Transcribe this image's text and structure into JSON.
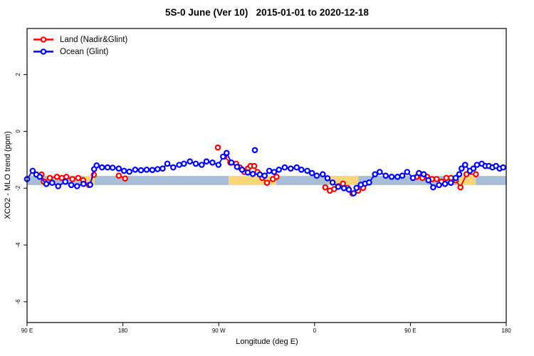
{
  "header": {
    "title": "5S-0 June (Ver 10)   2015-01-01 to 2020-12-18"
  },
  "chart_data": {
    "type": "line",
    "title": "5S-0 June (Ver 10)   2015-01-01 to 2020-12-18",
    "xlabel": "Longitude (deg E)",
    "ylabel": "XCO2 - MLO trend (ppm)",
    "xlim": [
      90,
      540
    ],
    "ylim": [
      -6.73,
      3.62
    ],
    "grid": false,
    "legend_position": "top-left",
    "marker": "open-circle",
    "xticks": [
      {
        "value": 90,
        "label": "90 E"
      },
      {
        "value": 180,
        "label": "180"
      },
      {
        "value": 270,
        "label": "90 W"
      },
      {
        "value": 360,
        "label": "0"
      },
      {
        "value": 450,
        "label": "90 E"
      },
      {
        "value": 540,
        "label": "180"
      }
    ],
    "yticks": [
      {
        "value": 2,
        "label": "2"
      },
      {
        "value": 0,
        "label": "0"
      },
      {
        "value": -2,
        "label": "-2"
      },
      {
        "value": -4,
        "label": "-4"
      },
      {
        "value": -6,
        "label": "-6"
      }
    ],
    "band": {
      "y": [
        -1.89,
        -1.57
      ],
      "colors": {
        "ocean": "#A8BED8",
        "land": "#FAD678"
      },
      "segments": [
        {
          "from": 90,
          "to": 142.8,
          "type": "ocean"
        },
        {
          "from": 142.8,
          "to": 153.5,
          "type": "land"
        },
        {
          "from": 153.5,
          "to": 279.3,
          "type": "ocean"
        },
        {
          "from": 279.3,
          "to": 324.1,
          "type": "land"
        },
        {
          "from": 324.1,
          "to": 373.6,
          "type": "ocean"
        },
        {
          "from": 373.6,
          "to": 401.0,
          "type": "land"
        },
        {
          "from": 401.0,
          "to": 496.0,
          "type": "ocean"
        },
        {
          "from": 496.0,
          "to": 511.4,
          "type": "land"
        },
        {
          "from": 511.4,
          "to": 540.0,
          "type": "ocean"
        }
      ]
    },
    "series": [
      {
        "name": "Land (Nadir&Glint)",
        "color": "#FF0000",
        "segments": [
          [
            [
              103.6,
              -1.52
            ],
            [
              105.8,
              -1.77
            ],
            [
              111.4,
              -1.64
            ],
            [
              118.1,
              -1.6
            ],
            [
              122.6,
              -1.64
            ],
            [
              127.0,
              -1.6
            ],
            [
              132.6,
              -1.68
            ],
            [
              138.1,
              -1.64
            ],
            [
              142.6,
              -1.72
            ],
            [
              148.2,
              -1.89
            ],
            [
              152.7,
              -1.53
            ]
          ],
          [
            [
              176.1,
              -1.56
            ],
            [
              182.1,
              -1.66
            ]
          ],
          [
            [
              275.2,
              -0.89
            ],
            [
              280.8,
              -1.1
            ],
            [
              286.4,
              -1.14
            ],
            [
              289.7,
              -1.27
            ],
            [
              294.1,
              -1.43
            ],
            [
              297.5,
              -1.31
            ],
            [
              299.9,
              -1.22
            ],
            [
              303.3,
              -1.22
            ],
            [
              306.4,
              -1.43
            ],
            [
              310.9,
              -1.64
            ],
            [
              315.3,
              -1.81
            ],
            [
              320.9,
              -1.68
            ],
            [
              324.3,
              -1.6
            ]
          ],
          [
            [
              370.0,
              -1.97
            ],
            [
              374.4,
              -2.09
            ],
            [
              378.4,
              -2.03
            ],
            [
              382.2,
              -1.93
            ],
            [
              386.7,
              -1.84
            ],
            [
              391.1,
              -1.99
            ],
            [
              395.6,
              -2.19
            ],
            [
              400.9,
              -2.09
            ],
            [
              405.6,
              -1.99
            ]
          ],
          [
            [
              455.8,
              -1.6
            ],
            [
              461.3,
              -1.64
            ],
            [
              465.8,
              -1.6
            ],
            [
              470.3,
              -1.68
            ],
            [
              474.7,
              -1.68
            ],
            [
              479.2,
              -1.77
            ],
            [
              483.7,
              -1.64
            ],
            [
              488.1,
              -1.64
            ],
            [
              492.6,
              -1.72
            ],
            [
              497.0,
              -1.97
            ],
            [
              502.6,
              -1.51
            ],
            [
              511.5,
              -1.51
            ]
          ]
        ],
        "outliers": [
          [
            269.2,
            -0.57
          ]
        ]
      },
      {
        "name": "Ocean (Glint)",
        "color": "#0000FF",
        "segments": [
          [
            [
              90.0,
              -1.68
            ],
            [
              95.3,
              -1.39
            ],
            [
              98.7,
              -1.52
            ],
            [
              102.0,
              -1.6
            ],
            [
              108.1,
              -1.85
            ],
            [
              113.6,
              -1.81
            ],
            [
              119.2,
              -1.93
            ],
            [
              125.9,
              -1.77
            ],
            [
              131.5,
              -1.89
            ],
            [
              137.0,
              -1.93
            ],
            [
              143.0,
              -1.85
            ],
            [
              149.3,
              -1.88
            ],
            [
              153.0,
              -1.33
            ],
            [
              155.3,
              -1.2
            ],
            [
              160.4,
              -1.27
            ],
            [
              165.6,
              -1.27
            ],
            [
              170.4,
              -1.28
            ],
            [
              176.1,
              -1.31
            ],
            [
              181.1,
              -1.39
            ],
            [
              186.1,
              -1.42
            ],
            [
              191.6,
              -1.35
            ],
            [
              197.0,
              -1.37
            ],
            [
              202.3,
              -1.35
            ],
            [
              207.7,
              -1.36
            ],
            [
              212.6,
              -1.33
            ],
            [
              217.3,
              -1.31
            ],
            [
              221.7,
              -1.14
            ],
            [
              227.3,
              -1.27
            ],
            [
              232.9,
              -1.18
            ],
            [
              237.3,
              -1.14
            ],
            [
              242.9,
              -1.06
            ],
            [
              248.5,
              -1.14
            ],
            [
              254.0,
              -1.18
            ],
            [
              258.5,
              -1.06
            ],
            [
              264.1,
              -1.1
            ],
            [
              269.7,
              -1.18
            ],
            [
              274.1,
              -0.89
            ],
            [
              277.4,
              -0.76
            ],
            [
              281.9,
              -1.1
            ],
            [
              287.2,
              -1.25
            ],
            [
              291.9,
              -1.35
            ],
            [
              297.3,
              -1.45
            ],
            [
              302.0,
              -1.5
            ],
            [
              308.6,
              -1.52
            ],
            [
              313.1,
              -1.56
            ],
            [
              317.5,
              -1.39
            ],
            [
              322.0,
              -1.43
            ],
            [
              326.5,
              -1.35
            ],
            [
              332.0,
              -1.27
            ],
            [
              337.6,
              -1.31
            ],
            [
              343.2,
              -1.27
            ],
            [
              347.6,
              -1.35
            ],
            [
              353.2,
              -1.39
            ],
            [
              357.6,
              -1.47
            ],
            [
              362.1,
              -1.56
            ],
            [
              367.7,
              -1.51
            ],
            [
              372.2,
              -1.65
            ],
            [
              376.9,
              -1.8
            ],
            [
              382.2,
              -1.95
            ],
            [
              387.6,
              -2.0
            ],
            [
              392.2,
              -2.05
            ],
            [
              396.7,
              -2.18
            ],
            [
              399.4,
              -1.99
            ],
            [
              403.4,
              -1.88
            ],
            [
              407.4,
              -1.84
            ],
            [
              411.2,
              -1.8
            ],
            [
              416.8,
              -1.51
            ],
            [
              421.2,
              -1.43
            ],
            [
              426.8,
              -1.56
            ],
            [
              432.4,
              -1.6
            ],
            [
              437.9,
              -1.6
            ],
            [
              442.4,
              -1.56
            ],
            [
              446.9,
              -1.43
            ],
            [
              452.4,
              -1.64
            ],
            [
              458.0,
              -1.47
            ],
            [
              462.5,
              -1.51
            ],
            [
              466.9,
              -1.72
            ],
            [
              471.4,
              -1.97
            ],
            [
              476.9,
              -1.89
            ],
            [
              482.5,
              -1.85
            ],
            [
              488.0,
              -1.81
            ],
            [
              492.5,
              -1.64
            ],
            [
              495.9,
              -1.51
            ],
            [
              498.1,
              -1.31
            ],
            [
              501.4,
              -1.18
            ],
            [
              505.9,
              -1.39
            ],
            [
              509.2,
              -1.31
            ],
            [
              512.5,
              -1.18
            ],
            [
              517.0,
              -1.14
            ],
            [
              520.4,
              -1.22
            ],
            [
              523.7,
              -1.22
            ],
            [
              527.1,
              -1.27
            ],
            [
              530.4,
              -1.22
            ],
            [
              533.8,
              -1.31
            ],
            [
              537.1,
              -1.27
            ]
          ]
        ],
        "outliers": [
          [
            304.0,
            -0.66
          ]
        ]
      }
    ]
  }
}
